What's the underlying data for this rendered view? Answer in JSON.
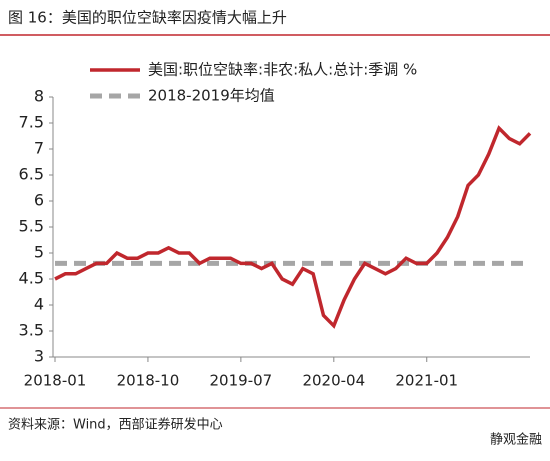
{
  "chart_data": {
    "type": "line",
    "title": "图 16：美国的职位空缺率因疫情大幅上升",
    "source": "资料来源：Wind，西部证券研发中心",
    "watermark": "静观金融",
    "categories": [
      "2018-01",
      null,
      null,
      null,
      null,
      null,
      null,
      null,
      null,
      "2018-10",
      null,
      null,
      null,
      null,
      null,
      null,
      null,
      null,
      "2019-07",
      null,
      null,
      null,
      null,
      null,
      null,
      null,
      null,
      "2020-04",
      null,
      null,
      null,
      null,
      null,
      null,
      null,
      null,
      "2021-01",
      null,
      null,
      null,
      null,
      null,
      null,
      null,
      null,
      null,
      null
    ],
    "series": [
      {
        "name": "美国:职位空缺率:非农:私人:总计:季调 %",
        "color": "#c0272d",
        "values": [
          4.5,
          4.6,
          4.6,
          4.7,
          4.8,
          4.8,
          5.0,
          4.9,
          4.9,
          5.0,
          5.0,
          5.1,
          5.0,
          5.0,
          4.8,
          4.9,
          4.9,
          4.9,
          4.8,
          4.8,
          4.7,
          4.8,
          4.5,
          4.4,
          4.7,
          4.6,
          3.8,
          3.6,
          4.1,
          4.5,
          4.8,
          4.7,
          4.6,
          4.7,
          4.9,
          4.8,
          4.8,
          5.0,
          5.3,
          5.7,
          6.3,
          6.5,
          6.9,
          7.4,
          7.2,
          7.1,
          7.3
        ]
      },
      {
        "name": "2018-2019年均值",
        "color": "#a6a6a6",
        "dashed": true,
        "values": [
          4.8,
          4.8,
          4.8,
          4.8,
          4.8,
          4.8,
          4.8,
          4.8,
          4.8,
          4.8,
          4.8,
          4.8,
          4.8,
          4.8,
          4.8,
          4.8,
          4.8,
          4.8,
          4.8,
          4.8,
          4.8,
          4.8,
          4.8,
          4.8,
          4.8,
          4.8,
          4.8,
          4.8,
          4.8,
          4.8,
          4.8,
          4.8,
          4.8,
          4.8,
          4.8,
          4.8,
          4.8,
          4.8,
          4.8,
          4.8,
          4.8,
          4.8,
          4.8,
          4.8,
          4.8,
          4.8,
          4.8
        ]
      }
    ],
    "ylim": [
      3,
      8
    ],
    "yticks": [
      3,
      3.5,
      4,
      4.5,
      5,
      5.5,
      6,
      6.5,
      7,
      7.5,
      8
    ]
  }
}
